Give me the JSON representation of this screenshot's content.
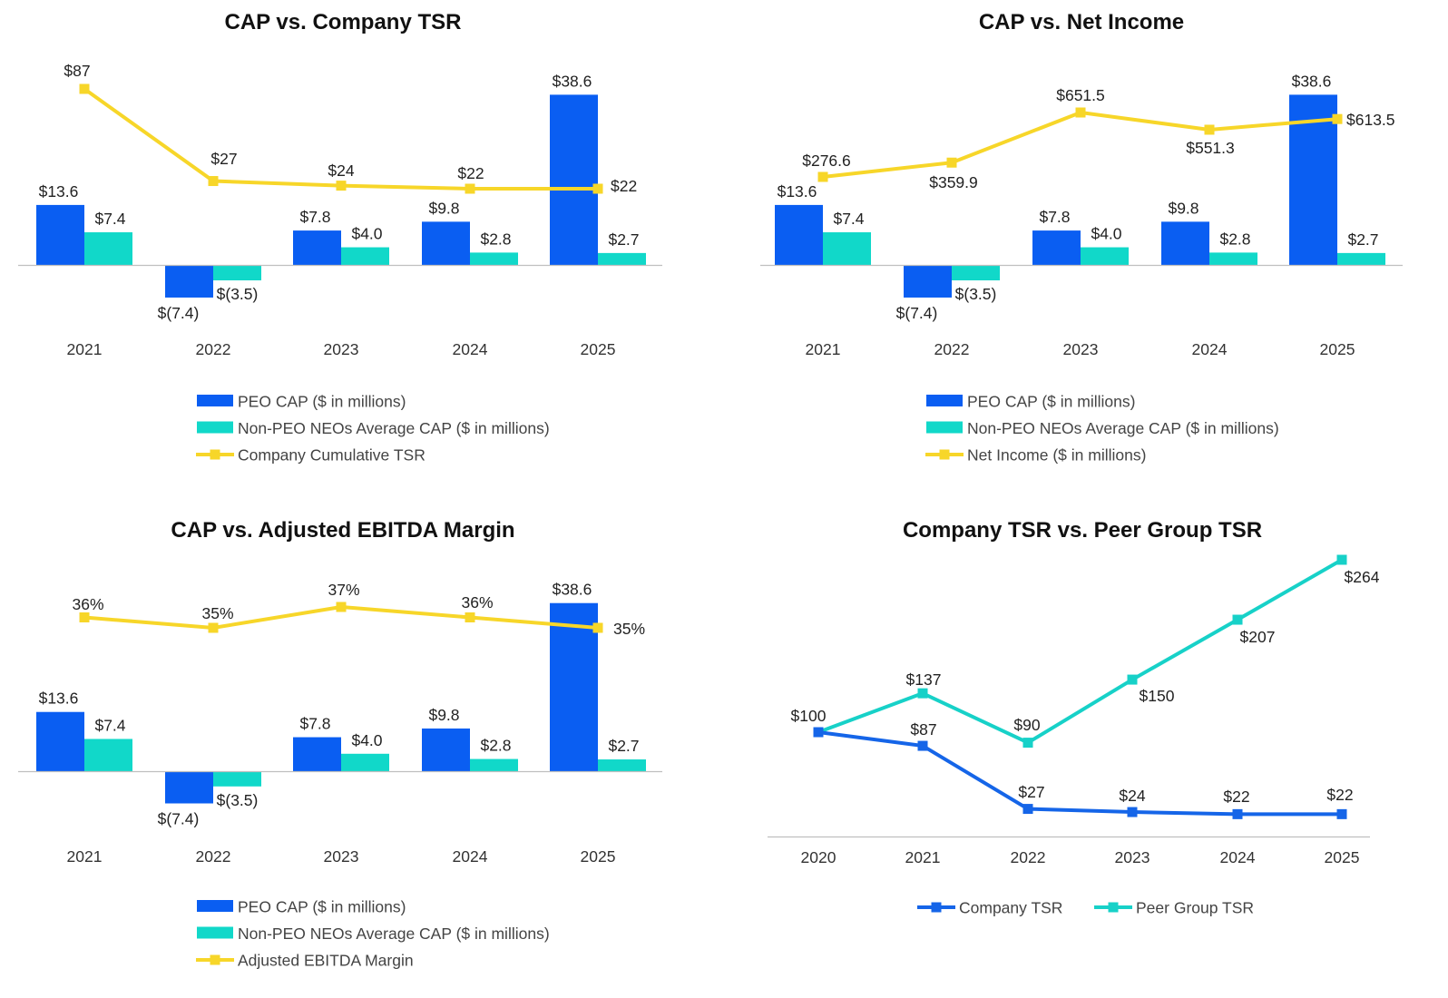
{
  "colors": {
    "peo": "#0a5ef2",
    "neo": "#11d8c9",
    "line": "#f7d629",
    "company_tsr": "#1565e8",
    "peer_tsr": "#17d1c8",
    "axis": "#bfbfbf"
  },
  "chart_data": [
    {
      "type": "bar",
      "title": "CAP vs. Company  TSR",
      "categories": [
        "2021",
        "2022",
        "2023",
        "2024",
        "2025"
      ],
      "series": [
        {
          "name": "PEO CAP ($ in millions)",
          "kind": "bar",
          "values": [
            13.6,
            -7.4,
            7.8,
            9.8,
            38.6
          ],
          "labels": [
            "$13.6",
            "$(7.4)",
            "$7.8",
            "$9.8",
            "$38.6"
          ]
        },
        {
          "name": "Non-PEO NEOs Average CAP ($ in millions)",
          "kind": "bar",
          "values": [
            7.4,
            -3.5,
            4.0,
            2.8,
            2.7
          ],
          "labels": [
            "$7.4",
            "$(3.5)",
            "$4.0",
            "$2.8",
            "$2.7"
          ]
        },
        {
          "name": "Company Cumulative TSR",
          "kind": "line",
          "values": [
            87,
            27,
            24,
            22,
            22
          ],
          "labels": [
            "$87",
            "$27",
            "$24",
            "$22",
            "$22"
          ]
        }
      ]
    },
    {
      "type": "bar",
      "title": "CAP vs. Net Income",
      "categories": [
        "2021",
        "2022",
        "2023",
        "2024",
        "2025"
      ],
      "series": [
        {
          "name": "PEO CAP ($ in millions)",
          "kind": "bar",
          "values": [
            13.6,
            -7.4,
            7.8,
            9.8,
            38.6
          ],
          "labels": [
            "$13.6",
            "$(7.4)",
            "$7.8",
            "$9.8",
            "$38.6"
          ]
        },
        {
          "name": "Non-PEO NEOs Average CAP ($ in millions)",
          "kind": "bar",
          "values": [
            7.4,
            -3.5,
            4.0,
            2.8,
            2.7
          ],
          "labels": [
            "$7.4",
            "$(3.5)",
            "$4.0",
            "$2.8",
            "$2.7"
          ]
        },
        {
          "name": "Net Income ($ in millions)",
          "kind": "line",
          "values": [
            276.6,
            359.9,
            651.5,
            551.3,
            613.5
          ],
          "labels": [
            "$276.6",
            "$359.9",
            "$651.5",
            "$551.3",
            "$613.5"
          ]
        }
      ]
    },
    {
      "type": "bar",
      "title": "CAP vs. Adjusted EBITDA Margin",
      "categories": [
        "2021",
        "2022",
        "2023",
        "2024",
        "2025"
      ],
      "series": [
        {
          "name": "PEO CAP ($ in millions)",
          "kind": "bar",
          "values": [
            13.6,
            -7.4,
            7.8,
            9.8,
            38.6
          ],
          "labels": [
            "$13.6",
            "$(7.4)",
            "$7.8",
            "$9.8",
            "$38.6"
          ]
        },
        {
          "name": "Non-PEO NEOs Average CAP ($ in millions)",
          "kind": "bar",
          "values": [
            7.4,
            -3.5,
            4.0,
            2.8,
            2.7
          ],
          "labels": [
            "$7.4",
            "$(3.5)",
            "$4.0",
            "$2.8",
            "$2.7"
          ]
        },
        {
          "name": "Adjusted EBITDA Margin",
          "kind": "line",
          "values": [
            36,
            35,
            37,
            36,
            35
          ],
          "labels": [
            "36%",
            "35%",
            "37%",
            "36%",
            "35%"
          ]
        }
      ]
    },
    {
      "type": "line",
      "title": "Company  TSR vs. Peer Group  TSR",
      "categories": [
        "2020",
        "2021",
        "2022",
        "2023",
        "2024",
        "2025"
      ],
      "series": [
        {
          "name": "Company TSR",
          "values": [
            100,
            87,
            27,
            24,
            22,
            22
          ],
          "labels": [
            "$100",
            "$87",
            "$27",
            "$24",
            "$22",
            "$22"
          ]
        },
        {
          "name": "Peer Group TSR",
          "values": [
            100,
            137,
            90,
            150,
            207,
            264
          ],
          "labels": [
            "",
            "$137",
            "$90",
            "$150",
            "$207",
            "$264"
          ]
        }
      ]
    }
  ]
}
